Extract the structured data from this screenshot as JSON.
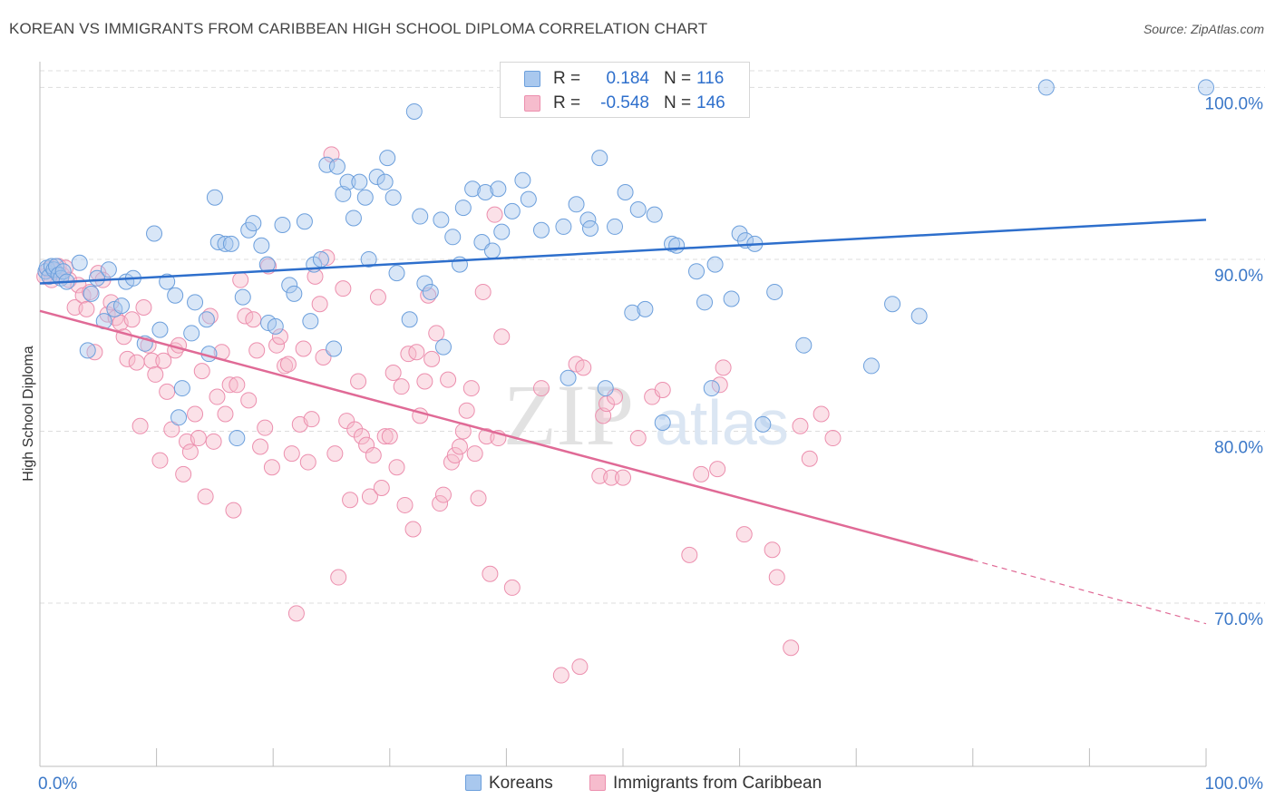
{
  "title": "KOREAN VS IMMIGRANTS FROM CARIBBEAN HIGH SCHOOL DIPLOMA CORRELATION CHART",
  "source": "Source: ZipAtlas.com",
  "watermark": {
    "part1": "ZIP",
    "part2": "atlas"
  },
  "colors": {
    "blue_fill": "#a9c8ee",
    "blue_stroke": "#6c9fdc",
    "blue_line": "#2e6fcc",
    "pink_fill": "#f6bccd",
    "pink_stroke": "#ec8fae",
    "pink_line": "#e06a96",
    "axis_text": "#3b78c8",
    "grid": "#dddddd"
  },
  "legend": {
    "rows": [
      {
        "r_label": "R =",
        "r_value": "0.184",
        "n_label": "N =",
        "n_value": "116"
      },
      {
        "r_label": "R =",
        "r_value": "-0.548",
        "n_label": "N =",
        "n_value": "146"
      }
    ]
  },
  "bottom_legend": [
    "Koreans",
    "Immigrants from Caribbean"
  ],
  "chart_data": {
    "type": "scatter",
    "title": "KOREAN VS IMMIGRANTS FROM CARIBBEAN HIGH SCHOOL DIPLOMA CORRELATION CHART",
    "xlabel": "",
    "ylabel": "High School Diploma",
    "xlim": [
      0,
      100
    ],
    "ylim": [
      60.5,
      101.5
    ],
    "x_tick_labels": [
      "0.0%",
      "100.0%"
    ],
    "y_ticks": [
      70,
      80,
      90,
      100
    ],
    "y_tick_labels": [
      "70.0%",
      "80.0%",
      "90.0%",
      "100.0%"
    ],
    "grid": true,
    "legend_position": "top-center",
    "series": [
      {
        "name": "Koreans",
        "color": "#6c9fdc",
        "r": 0.184,
        "n": 116,
        "trend": {
          "x": [
            0,
            100
          ],
          "y": [
            88.6,
            92.3
          ]
        },
        "points": [
          [
            0.5,
            89.3
          ],
          [
            0.6,
            89.5
          ],
          [
            0.8,
            89.0
          ],
          [
            1.0,
            89.6
          ],
          [
            1.2,
            89.4
          ],
          [
            1.4,
            89.6
          ],
          [
            1.6,
            89.1
          ],
          [
            1.8,
            88.9
          ],
          [
            2.0,
            89.3
          ],
          [
            2.3,
            88.7
          ],
          [
            3.4,
            89.8
          ],
          [
            4.1,
            84.7
          ],
          [
            4.4,
            88.0
          ],
          [
            4.9,
            88.9
          ],
          [
            5.5,
            86.4
          ],
          [
            5.9,
            89.4
          ],
          [
            6.4,
            87.1
          ],
          [
            7.0,
            87.3
          ],
          [
            7.4,
            88.7
          ],
          [
            8.0,
            88.9
          ],
          [
            9.0,
            85.1
          ],
          [
            9.8,
            91.5
          ],
          [
            10.3,
            85.9
          ],
          [
            10.9,
            88.7
          ],
          [
            11.6,
            87.9
          ],
          [
            12.2,
            82.5
          ],
          [
            11.9,
            80.8
          ],
          [
            13.0,
            85.7
          ],
          [
            13.3,
            87.5
          ],
          [
            14.3,
            86.5
          ],
          [
            14.5,
            84.5
          ],
          [
            15.0,
            93.6
          ],
          [
            15.3,
            91.0
          ],
          [
            15.9,
            90.9
          ],
          [
            16.4,
            90.9
          ],
          [
            16.9,
            79.6
          ],
          [
            17.4,
            87.8
          ],
          [
            17.9,
            91.7
          ],
          [
            18.3,
            92.1
          ],
          [
            19.0,
            90.8
          ],
          [
            19.5,
            89.7
          ],
          [
            19.6,
            86.3
          ],
          [
            20.2,
            86.1
          ],
          [
            20.8,
            92.0
          ],
          [
            21.4,
            88.5
          ],
          [
            21.8,
            88.0
          ],
          [
            22.7,
            92.2
          ],
          [
            23.2,
            86.4
          ],
          [
            23.5,
            89.7
          ],
          [
            24.1,
            90.0
          ],
          [
            24.6,
            95.5
          ],
          [
            25.2,
            84.8
          ],
          [
            25.5,
            95.4
          ],
          [
            26.0,
            93.8
          ],
          [
            26.4,
            94.5
          ],
          [
            26.9,
            92.4
          ],
          [
            27.4,
            94.5
          ],
          [
            27.9,
            93.6
          ],
          [
            28.2,
            90.0
          ],
          [
            28.9,
            94.8
          ],
          [
            29.6,
            94.5
          ],
          [
            29.8,
            95.9
          ],
          [
            30.3,
            93.6
          ],
          [
            30.6,
            89.2
          ],
          [
            31.7,
            86.5
          ],
          [
            32.1,
            98.6
          ],
          [
            32.6,
            92.5
          ],
          [
            33.0,
            88.6
          ],
          [
            33.5,
            88.1
          ],
          [
            34.4,
            92.3
          ],
          [
            34.6,
            84.9
          ],
          [
            35.4,
            91.3
          ],
          [
            36.0,
            89.7
          ],
          [
            36.3,
            93.0
          ],
          [
            37.1,
            94.1
          ],
          [
            37.9,
            91.0
          ],
          [
            38.2,
            93.9
          ],
          [
            38.8,
            90.5
          ],
          [
            39.3,
            94.1
          ],
          [
            39.6,
            91.6
          ],
          [
            40.5,
            92.8
          ],
          [
            41.4,
            94.6
          ],
          [
            41.9,
            93.5
          ],
          [
            43.0,
            91.7
          ],
          [
            44.9,
            91.9
          ],
          [
            45.3,
            83.1
          ],
          [
            46.0,
            93.2
          ],
          [
            47.0,
            92.3
          ],
          [
            47.2,
            91.8
          ],
          [
            48.0,
            95.9
          ],
          [
            48.5,
            82.5
          ],
          [
            49.3,
            91.9
          ],
          [
            50.2,
            93.9
          ],
          [
            50.8,
            86.9
          ],
          [
            51.3,
            92.9
          ],
          [
            51.9,
            87.1
          ],
          [
            52.7,
            92.6
          ],
          [
            53.4,
            80.5
          ],
          [
            54.2,
            90.9
          ],
          [
            54.6,
            90.8
          ],
          [
            56.3,
            89.3
          ],
          [
            57.0,
            87.5
          ],
          [
            57.6,
            82.5
          ],
          [
            57.9,
            89.7
          ],
          [
            59.3,
            87.7
          ],
          [
            60.0,
            91.5
          ],
          [
            60.5,
            91.1
          ],
          [
            61.3,
            90.9
          ],
          [
            62.0,
            80.4
          ],
          [
            63.0,
            88.1
          ],
          [
            65.5,
            85.0
          ],
          [
            71.3,
            83.8
          ],
          [
            73.1,
            87.4
          ],
          [
            75.4,
            86.7
          ],
          [
            86.3,
            100.0
          ],
          [
            100.0,
            100.0
          ]
        ]
      },
      {
        "name": "Immigrants from Caribbean",
        "color": "#ec8fae",
        "r": -0.548,
        "n": 146,
        "trend": {
          "x": [
            0,
            80
          ],
          "y": [
            87.0,
            72.5
          ],
          "dashed_x": [
            80,
            100
          ],
          "dashed_y": [
            72.5,
            68.8
          ]
        },
        "points": [
          [
            0.4,
            89.0
          ],
          [
            0.7,
            89.4
          ],
          [
            1.0,
            88.8
          ],
          [
            1.3,
            89.3
          ],
          [
            1.6,
            89.6
          ],
          [
            1.9,
            89.1
          ],
          [
            2.2,
            89.5
          ],
          [
            2.5,
            88.8
          ],
          [
            3.0,
            87.2
          ],
          [
            3.3,
            88.5
          ],
          [
            3.7,
            87.9
          ],
          [
            4.0,
            87.1
          ],
          [
            4.3,
            88.1
          ],
          [
            4.7,
            84.6
          ],
          [
            5.0,
            89.2
          ],
          [
            5.4,
            88.8
          ],
          [
            5.8,
            86.8
          ],
          [
            6.1,
            87.5
          ],
          [
            6.5,
            86.6
          ],
          [
            6.9,
            86.3
          ],
          [
            7.2,
            85.5
          ],
          [
            7.5,
            84.2
          ],
          [
            7.9,
            86.5
          ],
          [
            8.3,
            84.0
          ],
          [
            8.6,
            80.3
          ],
          [
            8.9,
            87.2
          ],
          [
            9.3,
            85.0
          ],
          [
            9.6,
            84.1
          ],
          [
            9.9,
            83.3
          ],
          [
            10.3,
            78.3
          ],
          [
            10.6,
            84.1
          ],
          [
            10.9,
            82.3
          ],
          [
            11.3,
            80.1
          ],
          [
            11.6,
            84.7
          ],
          [
            11.9,
            85.0
          ],
          [
            12.3,
            77.5
          ],
          [
            12.6,
            79.4
          ],
          [
            12.9,
            78.8
          ],
          [
            13.3,
            81.0
          ],
          [
            13.6,
            79.6
          ],
          [
            13.9,
            83.5
          ],
          [
            14.2,
            76.2
          ],
          [
            14.6,
            86.7
          ],
          [
            14.9,
            79.4
          ],
          [
            15.2,
            82.0
          ],
          [
            15.6,
            84.6
          ],
          [
            15.9,
            81.0
          ],
          [
            16.3,
            82.7
          ],
          [
            16.6,
            75.4
          ],
          [
            16.9,
            82.7
          ],
          [
            17.2,
            88.8
          ],
          [
            17.6,
            86.7
          ],
          [
            17.9,
            81.8
          ],
          [
            18.3,
            86.5
          ],
          [
            18.6,
            84.7
          ],
          [
            18.9,
            79.1
          ],
          [
            19.3,
            80.2
          ],
          [
            19.6,
            89.6
          ],
          [
            19.9,
            77.9
          ],
          [
            20.3,
            85.0
          ],
          [
            20.6,
            85.5
          ],
          [
            21.0,
            83.8
          ],
          [
            21.3,
            83.9
          ],
          [
            21.6,
            78.7
          ],
          [
            22.0,
            69.4
          ],
          [
            22.3,
            80.4
          ],
          [
            22.6,
            84.8
          ],
          [
            23.0,
            78.2
          ],
          [
            23.3,
            80.7
          ],
          [
            23.6,
            89.0
          ],
          [
            24.0,
            87.4
          ],
          [
            24.3,
            84.3
          ],
          [
            24.6,
            90.1
          ],
          [
            25.0,
            96.1
          ],
          [
            25.3,
            78.7
          ],
          [
            25.6,
            71.5
          ],
          [
            26.0,
            88.3
          ],
          [
            26.3,
            80.6
          ],
          [
            26.6,
            76.0
          ],
          [
            27.0,
            80.1
          ],
          [
            27.3,
            82.9
          ],
          [
            27.6,
            79.7
          ],
          [
            28.0,
            79.2
          ],
          [
            28.3,
            76.2
          ],
          [
            28.6,
            78.6
          ],
          [
            29.0,
            87.8
          ],
          [
            29.3,
            76.7
          ],
          [
            29.6,
            79.7
          ],
          [
            30.0,
            79.7
          ],
          [
            30.3,
            83.4
          ],
          [
            30.6,
            77.9
          ],
          [
            31.0,
            82.6
          ],
          [
            31.3,
            75.7
          ],
          [
            31.6,
            84.5
          ],
          [
            32.0,
            74.3
          ],
          [
            32.3,
            84.6
          ],
          [
            32.6,
            80.9
          ],
          [
            33.0,
            82.9
          ],
          [
            33.3,
            87.9
          ],
          [
            33.6,
            84.2
          ],
          [
            34.0,
            85.7
          ],
          [
            34.3,
            75.8
          ],
          [
            34.6,
            76.3
          ],
          [
            35.0,
            83.0
          ],
          [
            35.3,
            78.2
          ],
          [
            35.6,
            78.6
          ],
          [
            36.0,
            79.1
          ],
          [
            36.3,
            80.0
          ],
          [
            36.6,
            81.2
          ],
          [
            37.0,
            82.5
          ],
          [
            37.3,
            78.7
          ],
          [
            37.6,
            76.1
          ],
          [
            38.0,
            88.1
          ],
          [
            38.3,
            79.7
          ],
          [
            38.6,
            71.7
          ],
          [
            39.0,
            92.6
          ],
          [
            39.3,
            79.6
          ],
          [
            39.6,
            85.5
          ],
          [
            40.5,
            70.9
          ],
          [
            43.0,
            82.5
          ],
          [
            44.7,
            65.8
          ],
          [
            46.0,
            83.9
          ],
          [
            46.3,
            66.3
          ],
          [
            46.6,
            83.7
          ],
          [
            48.0,
            77.4
          ],
          [
            48.3,
            80.9
          ],
          [
            48.6,
            81.6
          ],
          [
            49.0,
            77.3
          ],
          [
            49.3,
            82.0
          ],
          [
            50.0,
            77.3
          ],
          [
            51.3,
            79.6
          ],
          [
            52.5,
            82.0
          ],
          [
            53.4,
            82.4
          ],
          [
            55.7,
            72.8
          ],
          [
            56.7,
            77.5
          ],
          [
            58.1,
            77.8
          ],
          [
            58.3,
            82.7
          ],
          [
            58.6,
            83.7
          ],
          [
            60.4,
            74.0
          ],
          [
            62.8,
            73.1
          ],
          [
            63.2,
            71.5
          ],
          [
            64.4,
            67.4
          ],
          [
            65.2,
            80.3
          ],
          [
            66.0,
            78.4
          ],
          [
            67.0,
            81.0
          ],
          [
            68.0,
            79.6
          ]
        ]
      }
    ]
  }
}
